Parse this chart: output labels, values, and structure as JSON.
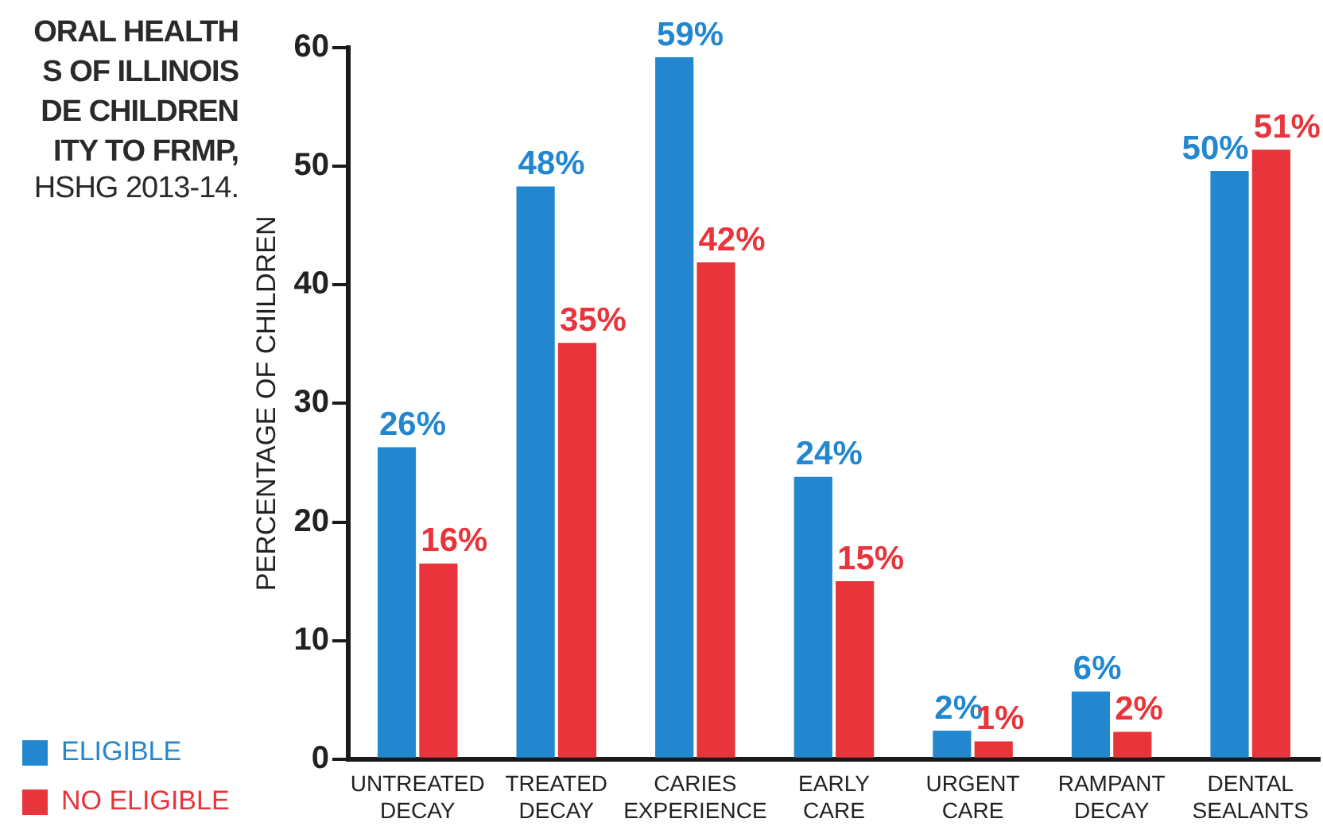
{
  "chart_data": {
    "type": "bar",
    "title": "ORAL HEALTH\nS OF ILLINOIS\nDE CHILDREN\nITY TO FRMP,",
    "subtitle": "HSHG 2013-14.",
    "ylabel": "PERCENTAGE OF CHILDREN",
    "categories": [
      "UNTREATED DECAY",
      "TREATED DECAY",
      "CARIES EXPERIENCE",
      "EARLY CARE",
      "URGENT CARE",
      "RAMPANT DECAY",
      "DENTAL SEALANTS"
    ],
    "series": [
      {
        "name": "ELIGIBLE",
        "color": "#2387d0",
        "values": [
          26.3,
          48.3,
          59.2,
          23.8,
          2.4,
          5.7,
          49.6
        ],
        "value_labels": [
          "26%",
          "48%",
          "59%",
          "24%",
          "2%",
          "6%",
          "50%"
        ]
      },
      {
        "name": "NO ELIGIBLE",
        "color": "#e8343a",
        "values": [
          16.5,
          35.1,
          41.9,
          15.0,
          1.5,
          2.3,
          51.4
        ],
        "value_labels": [
          "16%",
          "35%",
          "42%",
          "15%",
          "1%",
          "2%",
          "51%"
        ]
      }
    ],
    "ylim": [
      0,
      60
    ],
    "yticks": [
      0,
      10,
      20,
      30,
      40,
      50,
      60
    ],
    "grid": false,
    "legend": "left"
  }
}
